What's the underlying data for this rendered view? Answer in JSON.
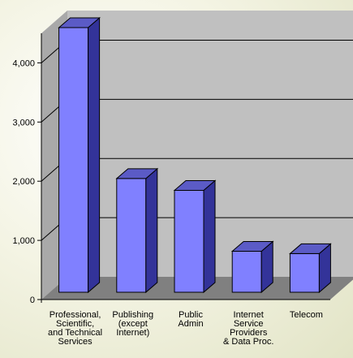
{
  "chart_data": {
    "type": "bar",
    "categories": [
      [
        "Professional,",
        "Scientific,",
        "and Technical",
        "Services"
      ],
      [
        "Publishing",
        "(except",
        "Internet)"
      ],
      [
        "Public",
        "Admin"
      ],
      [
        "Internet",
        "Service",
        "Providers",
        "& Data Proc."
      ],
      [
        "Telecom"
      ]
    ],
    "values": [
      4500,
      1950,
      1750,
      720,
      680
    ],
    "y_tick_labels": [
      "0",
      "1,000",
      "2,000",
      "3,000",
      "4,000"
    ],
    "y_ticks": [
      0,
      1000,
      2000,
      3000,
      4000
    ],
    "ylim": [
      0,
      4500
    ],
    "grid": true,
    "title": "",
    "xlabel": "",
    "ylabel": "",
    "colors": {
      "bar_front": "#8080ff",
      "bar_side": "#333399",
      "bar_top": "#5b5bc6",
      "wall": "#c0c0c0",
      "floor": "#808080"
    }
  }
}
